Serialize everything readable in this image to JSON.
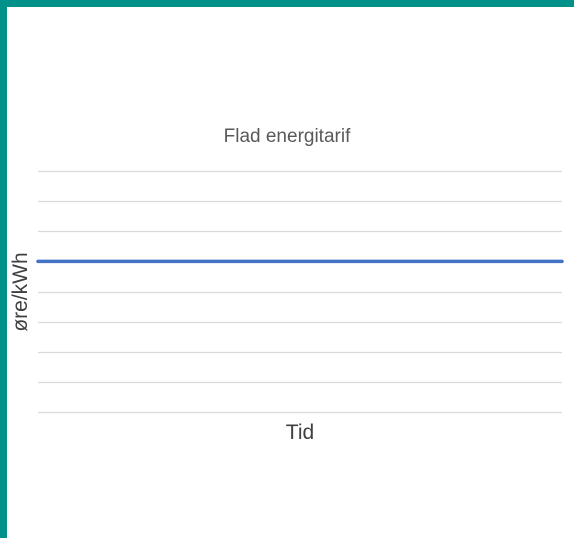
{
  "colors": {
    "frame": "#00918a",
    "gridline": "#d9d9d9",
    "series": "#4472c4",
    "title": "#595959"
  },
  "chart_data": {
    "type": "line",
    "title": "Flad energitarif",
    "xlabel": "Tid",
    "ylabel": "øre/kWh",
    "ylim": [
      0,
      8
    ],
    "gridlines": 9,
    "grid": true,
    "legend": "none",
    "series": [
      {
        "values": [
          5,
          5
        ]
      }
    ]
  }
}
